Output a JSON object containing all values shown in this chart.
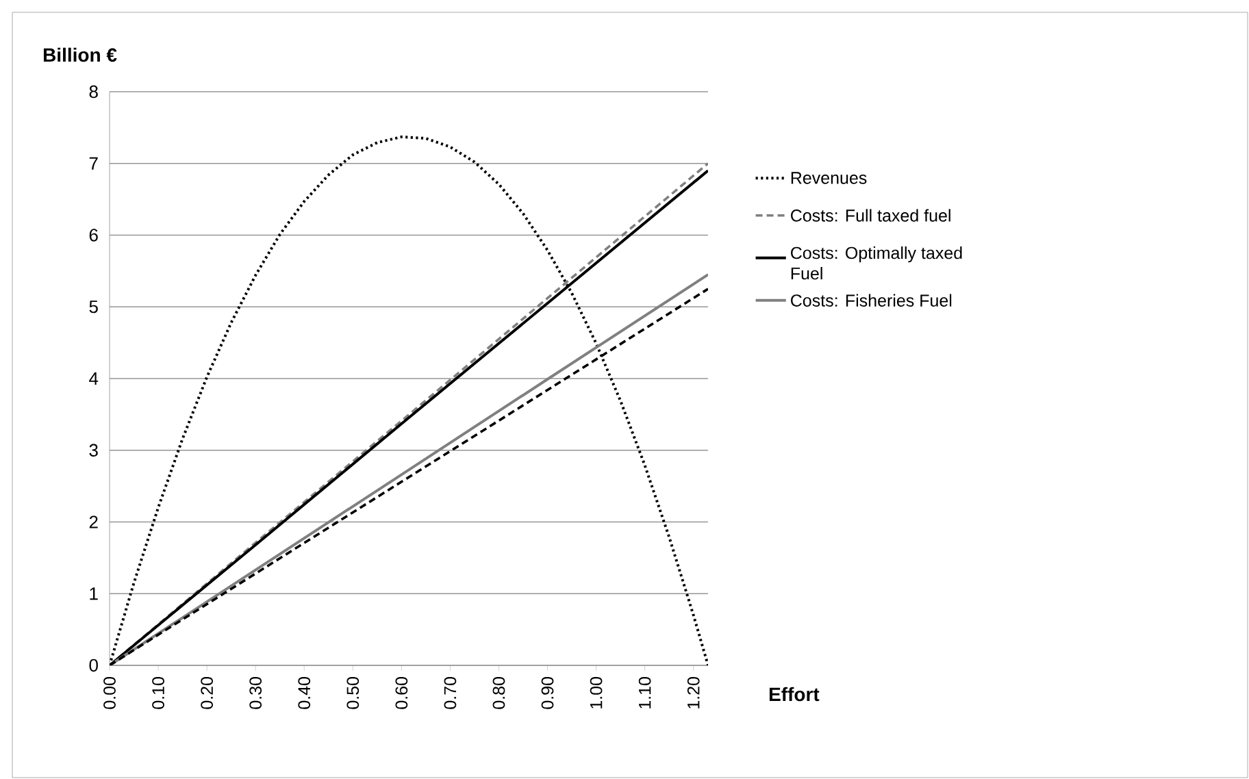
{
  "chart_data": {
    "type": "line",
    "ylabel": "Billion €",
    "xlabel": "Effort",
    "xlim": [
      0,
      1.23
    ],
    "ylim": [
      0,
      8
    ],
    "xticks": [
      {
        "value": 0,
        "label": "0.00"
      },
      {
        "value": 0.1,
        "label": "0.10"
      },
      {
        "value": 0.2,
        "label": "0.20"
      },
      {
        "value": 0.3,
        "label": "0.30"
      },
      {
        "value": 0.4,
        "label": "0.40"
      },
      {
        "value": 0.5,
        "label": "0.50"
      },
      {
        "value": 0.6,
        "label": "0.60"
      },
      {
        "value": 0.7,
        "label": "0.70"
      },
      {
        "value": 0.8,
        "label": "0.80"
      },
      {
        "value": 0.9,
        "label": "0.90"
      },
      {
        "value": 1.0,
        "label": "1.00"
      },
      {
        "value": 1.1,
        "label": "1.10"
      },
      {
        "value": 1.2,
        "label": "1.20"
      }
    ],
    "yticks": [
      0,
      1,
      2,
      3,
      4,
      5,
      6,
      7,
      8
    ],
    "grid": "y",
    "legend": "right",
    "marker": "none",
    "series": [
      {
        "name": "Revenues",
        "color": "#000000",
        "line_style": "dotted",
        "x": [
          0,
          0.05,
          0.1,
          0.15,
          0.2,
          0.25,
          0.3,
          0.35,
          0.4,
          0.45,
          0.5,
          0.55,
          0.6,
          0.65,
          0.7,
          0.75,
          0.8,
          0.85,
          0.9,
          0.95,
          1.0,
          1.05,
          1.1,
          1.15,
          1.2,
          1.23
        ],
        "values": [
          0,
          1.15,
          2.2,
          3.16,
          4.02,
          4.78,
          5.44,
          6.01,
          6.47,
          6.84,
          7.12,
          7.29,
          7.37,
          7.35,
          7.23,
          7.02,
          6.71,
          6.3,
          5.79,
          5.19,
          4.49,
          3.69,
          2.79,
          1.79,
          0.7,
          0
        ]
      },
      {
        "name": "Costs: Full taxed fuel",
        "color": "#808080",
        "line_style": "dashed",
        "x": [
          0,
          0.3,
          0.6,
          0.9,
          1.23
        ],
        "values": [
          0,
          1.71,
          3.41,
          5.12,
          7.0
        ]
      },
      {
        "name": "Costs: Optimally taxed Fuel",
        "color": "#000000",
        "line_style": "solid",
        "x": [
          0,
          0.3,
          0.6,
          0.9,
          1.23
        ],
        "values": [
          0,
          1.68,
          3.37,
          5.05,
          6.9
        ]
      },
      {
        "name": "Costs: Fisheries Fuel",
        "color": "#808080",
        "line_style": "solid",
        "x": [
          0,
          0.3,
          0.6,
          0.9,
          1.23
        ],
        "values": [
          0,
          1.33,
          2.66,
          3.99,
          5.45
        ]
      },
      {
        "color": "#000000",
        "line_style": "dashed",
        "x": [
          0,
          0.3,
          0.6,
          0.9,
          1.23
        ],
        "values": [
          0,
          1.28,
          2.56,
          3.84,
          5.25
        ]
      }
    ]
  }
}
